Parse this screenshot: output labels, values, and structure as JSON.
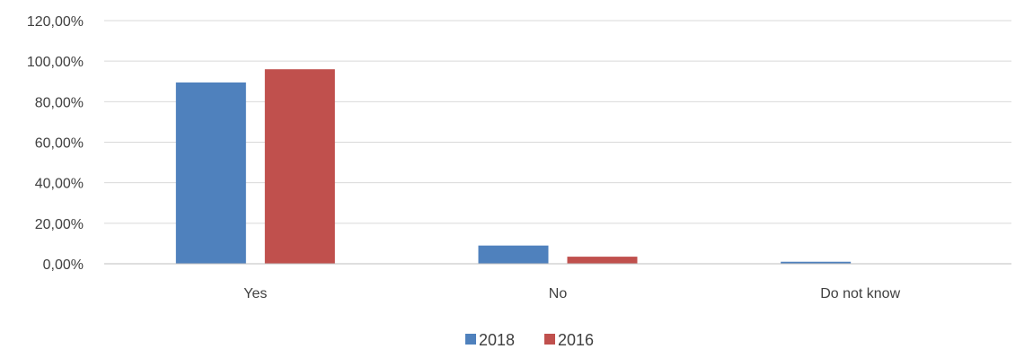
{
  "chart_data": {
    "type": "bar",
    "categories": [
      "Yes",
      "No",
      "Do not know"
    ],
    "series": [
      {
        "name": "2018",
        "color": "#4F81BD",
        "values": [
          89.5,
          9.0,
          1.0
        ]
      },
      {
        "name": "2016",
        "color": "#C0504D",
        "values": [
          96.0,
          3.5,
          0.0
        ]
      }
    ],
    "y_ticks": [
      "0,00%",
      "20,00%",
      "40,00%",
      "60,00%",
      "80,00%",
      "100,00%",
      "120,00%"
    ],
    "ylim": [
      0,
      120
    ],
    "y_unit": "%",
    "grid": true,
    "legend_position": "bottom",
    "title": "",
    "xlabel": "",
    "ylabel": "",
    "gridline_color": "#D9D9D9",
    "axis_color": "#BFBFBF"
  }
}
